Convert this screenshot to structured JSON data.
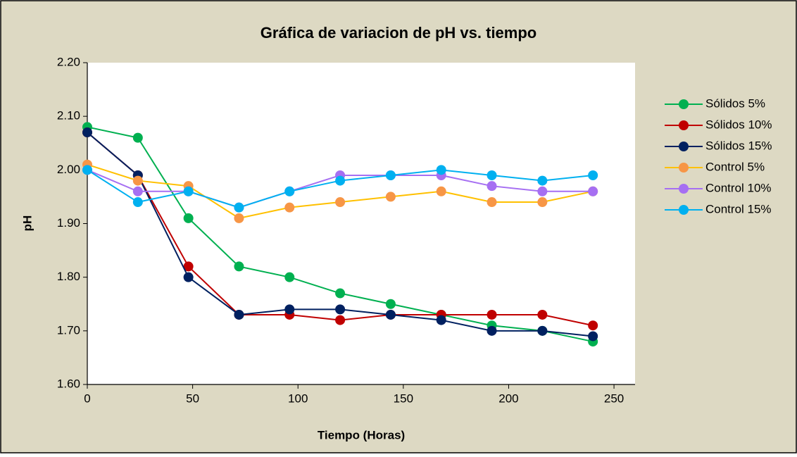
{
  "chart_data": {
    "type": "line",
    "title": "Gráfica de variacion de pH vs. tiempo",
    "x_label": "Tiempo (Horas)",
    "y_label": "pH",
    "x": [
      0,
      24,
      48,
      72,
      96,
      120,
      144,
      168,
      192,
      216,
      240
    ],
    "series": [
      {
        "name": "Sólidos 5%",
        "color": "#00b050",
        "marker_color": "#00b050",
        "values": [
          2.08,
          2.06,
          1.91,
          1.82,
          1.8,
          1.77,
          1.75,
          1.73,
          1.71,
          1.7,
          1.68
        ]
      },
      {
        "name": "Sólidos 10%",
        "color": "#c00000",
        "marker_color": "#c00000",
        "values": [
          2.07,
          1.99,
          1.82,
          1.73,
          1.73,
          1.72,
          1.73,
          1.73,
          1.73,
          1.73,
          1.71
        ]
      },
      {
        "name": "Sólidos 15%",
        "color": "#002060",
        "marker_color": "#002060",
        "values": [
          2.07,
          1.99,
          1.8,
          1.73,
          1.74,
          1.74,
          1.73,
          1.72,
          1.7,
          1.7,
          1.69
        ]
      },
      {
        "name": "Control 5%",
        "color": "#ffc000",
        "marker_color": "#f79646",
        "values": [
          2.01,
          1.98,
          1.97,
          1.91,
          1.93,
          1.94,
          1.95,
          1.96,
          1.94,
          1.94,
          1.96
        ]
      },
      {
        "name": "Control 10%",
        "color": "#a66ff2",
        "marker_color": "#a66ff2",
        "values": [
          2.0,
          1.96,
          1.96,
          1.93,
          1.96,
          1.99,
          1.99,
          1.99,
          1.97,
          1.96,
          1.96
        ]
      },
      {
        "name": "Control 15%",
        "color": "#00b0f0",
        "marker_color": "#00b0f0",
        "values": [
          2.0,
          1.94,
          1.96,
          1.93,
          1.96,
          1.98,
          1.99,
          2.0,
          1.99,
          1.98,
          1.99
        ]
      }
    ],
    "xlim": [
      0,
      260
    ],
    "xticks": [
      0,
      50,
      100,
      150,
      200,
      250
    ],
    "ylim": [
      1.6,
      2.2
    ],
    "yticks": [
      {
        "value": 1.6,
        "label": "1.60"
      },
      {
        "value": 1.7,
        "label": "1.70"
      },
      {
        "value": 1.8,
        "label": "1.80"
      },
      {
        "value": 1.9,
        "label": "1.90"
      },
      {
        "value": 2.0,
        "label": "2.00"
      },
      {
        "value": 2.1,
        "label": "2.10"
      },
      {
        "value": 2.2,
        "label": "2.20"
      }
    ],
    "grid": false,
    "legend": "right"
  }
}
